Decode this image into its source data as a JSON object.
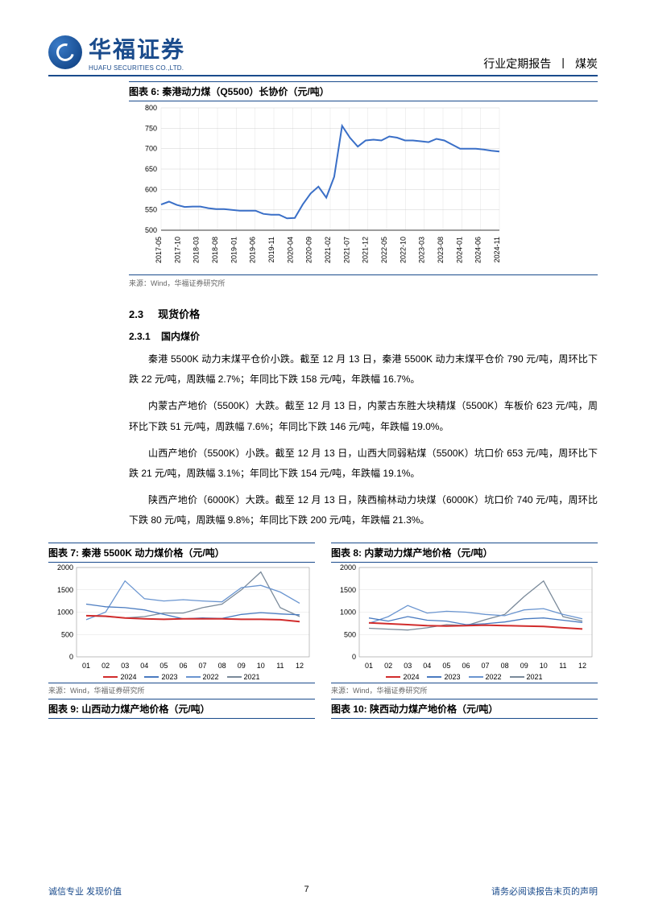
{
  "header": {
    "logo_cn": "华福证券",
    "logo_en": "HUAFU SECURITIES CO.,LTD.",
    "right_report": "行业定期报告",
    "right_sector": "煤炭"
  },
  "chart6": {
    "title": "图表 6:  秦港动力煤（Q5500）长协价（元/吨）",
    "source": "来源：Wind，华福证券研究所",
    "type": "line",
    "ylim": [
      500,
      800
    ],
    "ytick_step": 50,
    "xlabels": [
      "2017-05",
      "2017-10",
      "2018-03",
      "2018-08",
      "2019-01",
      "2019-06",
      "2019-11",
      "2020-04",
      "2020-09",
      "2021-02",
      "2021-07",
      "2021-12",
      "2022-05",
      "2022-10",
      "2023-03",
      "2023-08",
      "2024-01",
      "2024-06",
      "2024-11"
    ],
    "series": {
      "color": "#3a6fc7",
      "width": 2,
      "values": [
        563,
        570,
        562,
        557,
        558,
        558,
        554,
        552,
        552,
        550,
        548,
        548,
        548,
        540,
        538,
        538,
        529,
        530,
        563,
        590,
        607,
        580,
        631,
        756,
        727,
        705,
        720,
        722,
        720,
        730,
        727,
        720,
        720,
        718,
        716,
        724,
        720,
        710,
        700,
        700,
        700,
        698,
        695,
        693
      ]
    },
    "grid_color": "#d0d0d0",
    "background_color": "#ffffff",
    "tick_fontsize": 9
  },
  "section": {
    "num": "2.3",
    "title": "现货价格",
    "sub_num": "2.3.1",
    "sub_title": "国内煤价",
    "p1": "秦港 5500K 动力末煤平仓价小跌。截至 12 月 13 日，秦港 5500K 动力末煤平仓价 790 元/吨，周环比下跌 22 元/吨，周跌幅 2.7%；年同比下跌 158 元/吨，年跌幅 16.7%。",
    "p2": "内蒙古产地价（5500K）大跌。截至 12 月 13 日，内蒙古东胜大块精煤（5500K）车板价 623 元/吨，周环比下跌 51 元/吨，周跌幅 7.6%；年同比下跌 146 元/吨，年跌幅 19.0%。",
    "p3": "山西产地价（5500K）小跌。截至 12 月 13 日，山西大同弱粘煤（5500K）坑口价 653 元/吨，周环比下跌 21 元/吨，周跌幅 3.1%；年同比下跌 154 元/吨，年跌幅 19.1%。",
    "p4": "陕西产地价（6000K）大跌。截至 12 月 13 日，陕西榆林动力块煤（6000K）坑口价 740 元/吨，周环比下跌 80 元/吨，周跌幅 9.8%；年同比下跌 200 元/吨，年跌幅 21.3%。"
  },
  "chart7": {
    "title": "图表 7:  秦港 5500K 动力煤价格（元/吨）",
    "source": "来源：Wind，华福证券研究所",
    "ylim": [
      0,
      2000
    ],
    "ytick_step": 500,
    "xlabels": [
      "01",
      "02",
      "03",
      "04",
      "05",
      "06",
      "07",
      "08",
      "09",
      "10",
      "11",
      "12"
    ],
    "legend": [
      "2024",
      "2023",
      "2022",
      "2021"
    ],
    "colors": {
      "2024": "#d12c2c",
      "2023": "#4a7bc0",
      "2022": "#4a7bc0",
      "2021": "#7a8a9a"
    },
    "series": {
      "2024": [
        920,
        910,
        870,
        850,
        840,
        850,
        850,
        850,
        840,
        840,
        830,
        790
      ],
      "2023": [
        1180,
        1120,
        1100,
        1050,
        950,
        850,
        870,
        860,
        950,
        990,
        960,
        940
      ],
      "2022": [
        830,
        1000,
        1700,
        1300,
        1250,
        1280,
        1250,
        1230,
        1550,
        1600,
        1450,
        1200
      ],
      "2021": [
        920,
        900,
        870,
        900,
        980,
        980,
        1100,
        1180,
        1500,
        1900,
        1100,
        900
      ]
    }
  },
  "chart8": {
    "title": "图表 8:  内蒙动力煤产地价格（元/吨）",
    "source": "来源：Wind，华福证券研究所",
    "ylim": [
      0,
      2000
    ],
    "ytick_step": 500,
    "xlabels": [
      "01",
      "02",
      "03",
      "04",
      "05",
      "06",
      "07",
      "08",
      "09",
      "10",
      "11",
      "12"
    ],
    "legend": [
      "2024",
      "2023",
      "2022",
      "2021"
    ],
    "series": {
      "2024": [
        760,
        740,
        720,
        700,
        690,
        700,
        710,
        700,
        690,
        680,
        650,
        623
      ],
      "2023": [
        870,
        800,
        900,
        820,
        800,
        720,
        740,
        780,
        850,
        870,
        820,
        770
      ],
      "2022": [
        750,
        900,
        1150,
        980,
        1020,
        1000,
        950,
        920,
        1050,
        1080,
        950,
        850
      ],
      "2021": [
        640,
        620,
        600,
        650,
        720,
        700,
        830,
        950,
        1350,
        1700,
        900,
        800
      ]
    }
  },
  "chart9": {
    "title": "图表 9:  山西动力煤产地价格（元/吨）"
  },
  "chart10": {
    "title": "图表 10:  陕西动力煤产地价格（元/吨）"
  },
  "footer": {
    "left": "诚信专业  发现价值",
    "page": "7",
    "right": "请务必阅读报告末页的声明"
  }
}
